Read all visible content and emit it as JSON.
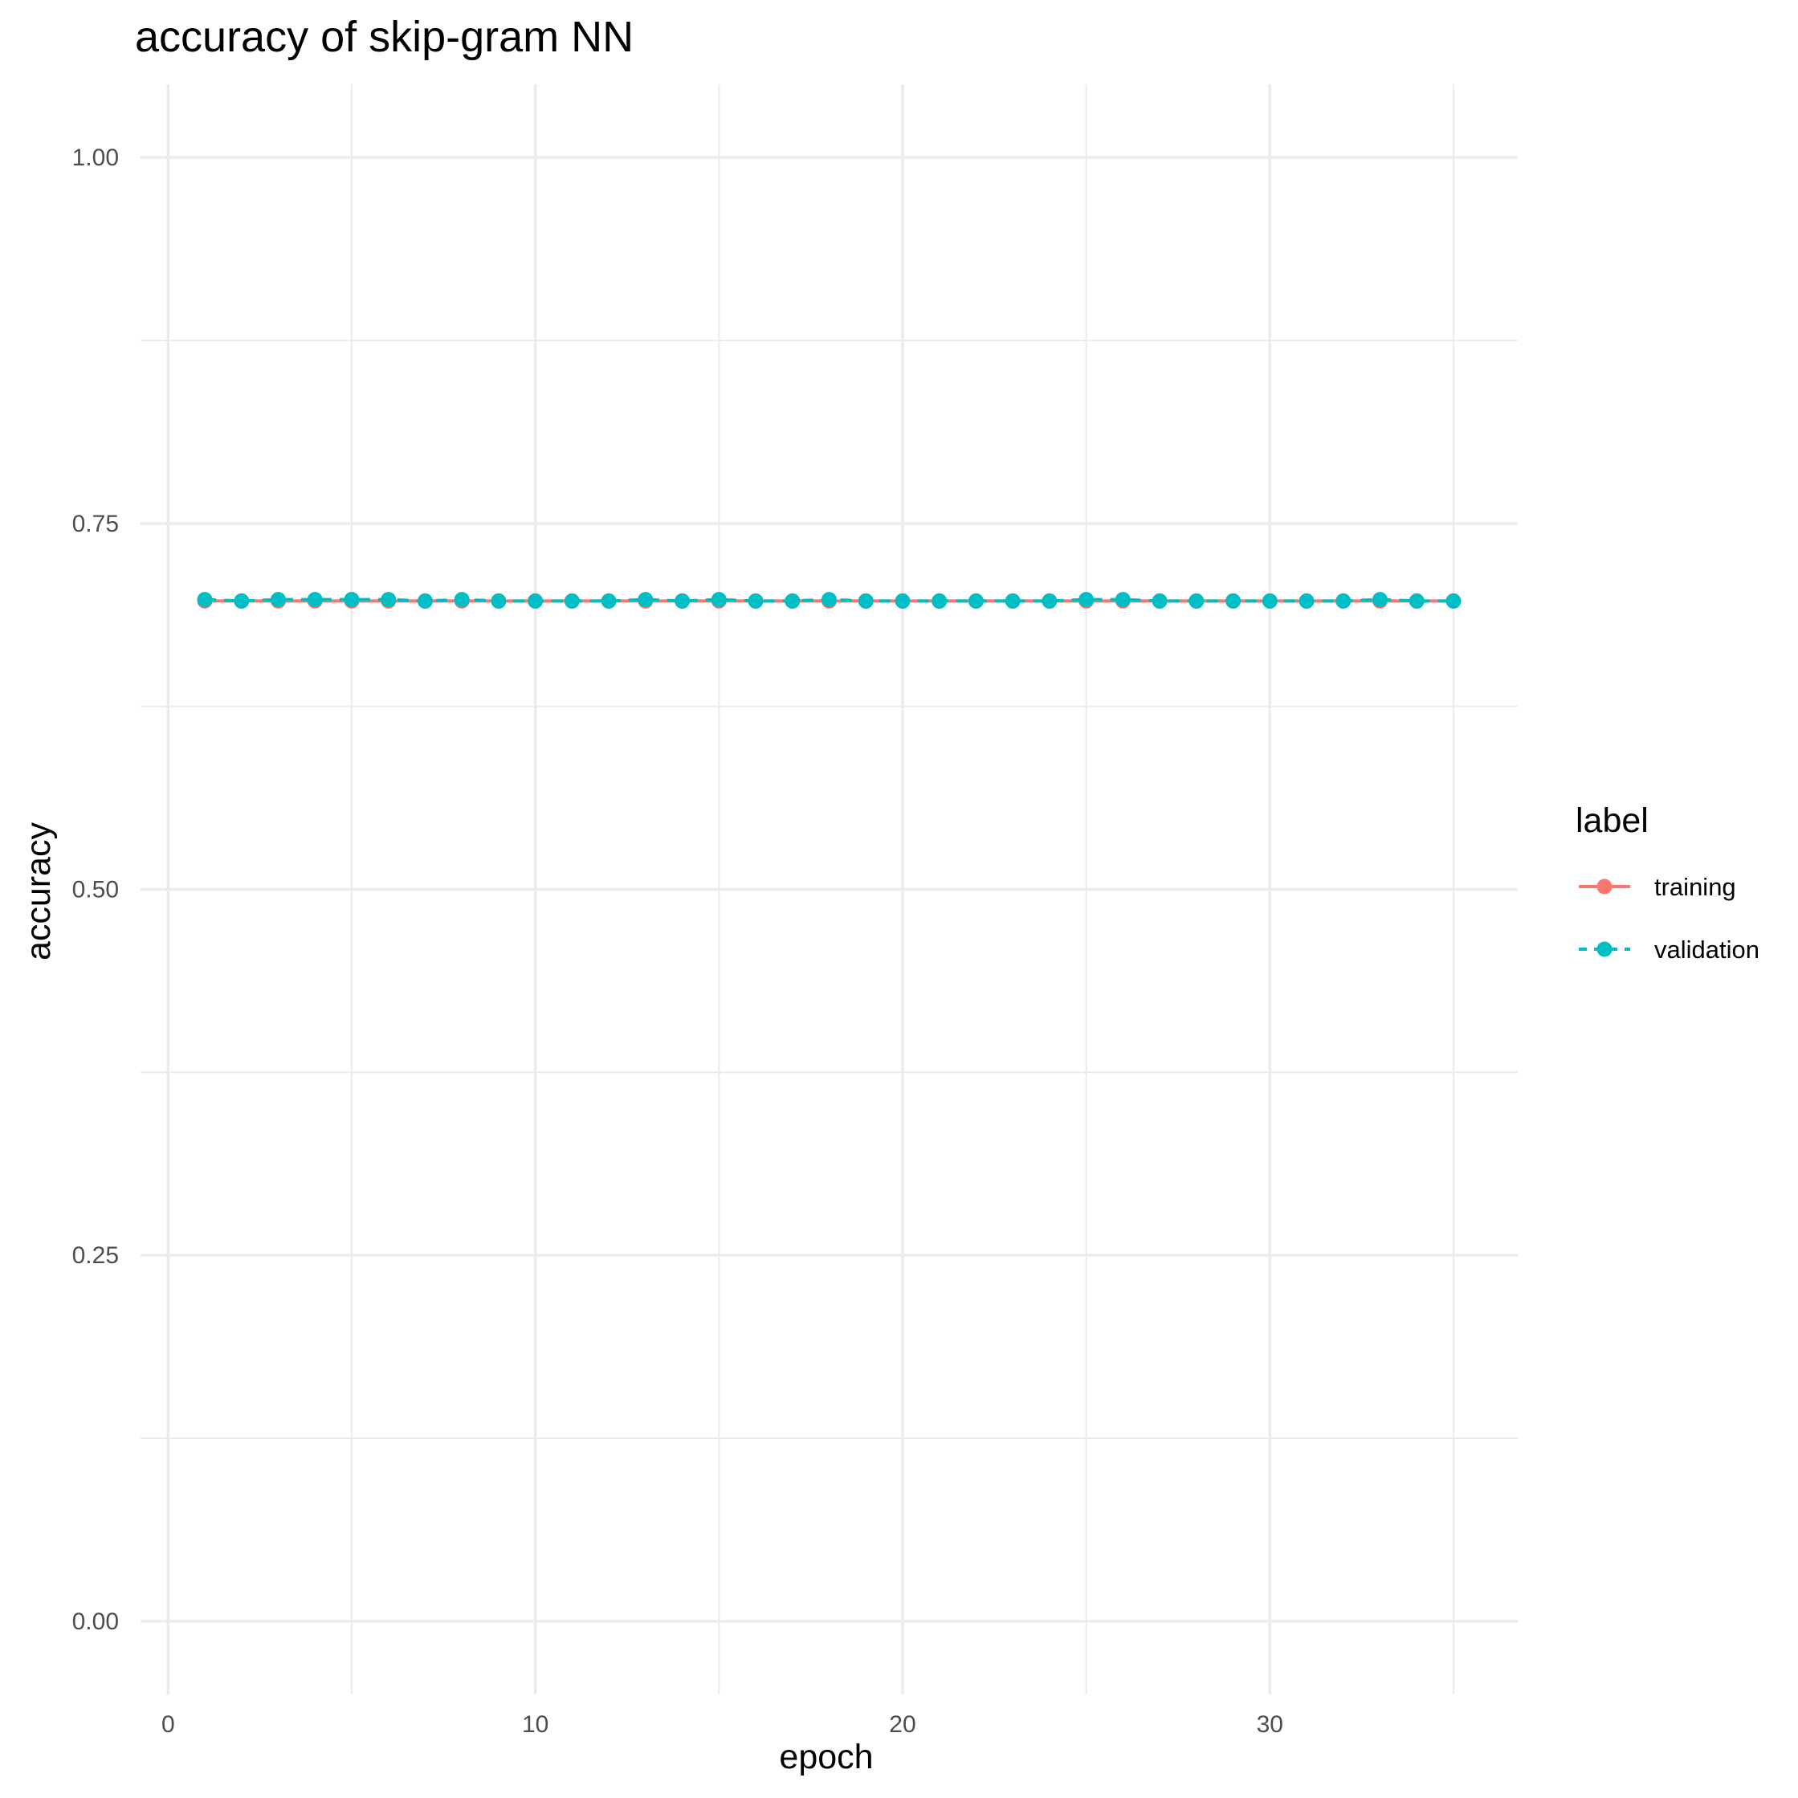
{
  "chart_data": {
    "type": "line",
    "title": "accuracy of skip-gram NN",
    "xlabel": "epoch",
    "ylabel": "accuracy",
    "xlim": [
      -0.75,
      36.75
    ],
    "ylim": [
      -0.05,
      1.05
    ],
    "x_ticks": [
      0,
      10,
      20,
      30
    ],
    "x_tick_labels": [
      "0",
      "10",
      "20",
      "30"
    ],
    "y_ticks": [
      0,
      0.25,
      0.5,
      0.75,
      1
    ],
    "y_tick_labels": [
      "0.00",
      "0.25",
      "0.50",
      "0.75",
      "1.00"
    ],
    "grid": true,
    "legend": {
      "title": "label",
      "position": "right"
    },
    "x": [
      1,
      2,
      3,
      4,
      5,
      6,
      7,
      8,
      9,
      10,
      11,
      12,
      13,
      14,
      15,
      16,
      17,
      18,
      19,
      20,
      21,
      22,
      23,
      24,
      25,
      26,
      27,
      28,
      29,
      30,
      31,
      32,
      33,
      34,
      35
    ],
    "series": [
      {
        "name": "training",
        "color": "#F8766D",
        "line": "solid",
        "values": [
          0.697,
          0.697,
          0.697,
          0.697,
          0.697,
          0.697,
          0.697,
          0.697,
          0.697,
          0.697,
          0.697,
          0.697,
          0.697,
          0.697,
          0.697,
          0.697,
          0.697,
          0.697,
          0.697,
          0.697,
          0.697,
          0.697,
          0.697,
          0.697,
          0.697,
          0.697,
          0.697,
          0.697,
          0.697,
          0.697,
          0.697,
          0.697,
          0.697,
          0.697,
          0.697
        ]
      },
      {
        "name": "validation",
        "color": "#00BFC4",
        "line": "dashed",
        "values": [
          0.698,
          0.697,
          0.698,
          0.698,
          0.698,
          0.698,
          0.697,
          0.698,
          0.697,
          0.697,
          0.697,
          0.697,
          0.698,
          0.697,
          0.698,
          0.697,
          0.697,
          0.698,
          0.697,
          0.697,
          0.697,
          0.697,
          0.697,
          0.697,
          0.698,
          0.698,
          0.697,
          0.697,
          0.697,
          0.697,
          0.697,
          0.697,
          0.698,
          0.697,
          0.697
        ]
      }
    ]
  }
}
